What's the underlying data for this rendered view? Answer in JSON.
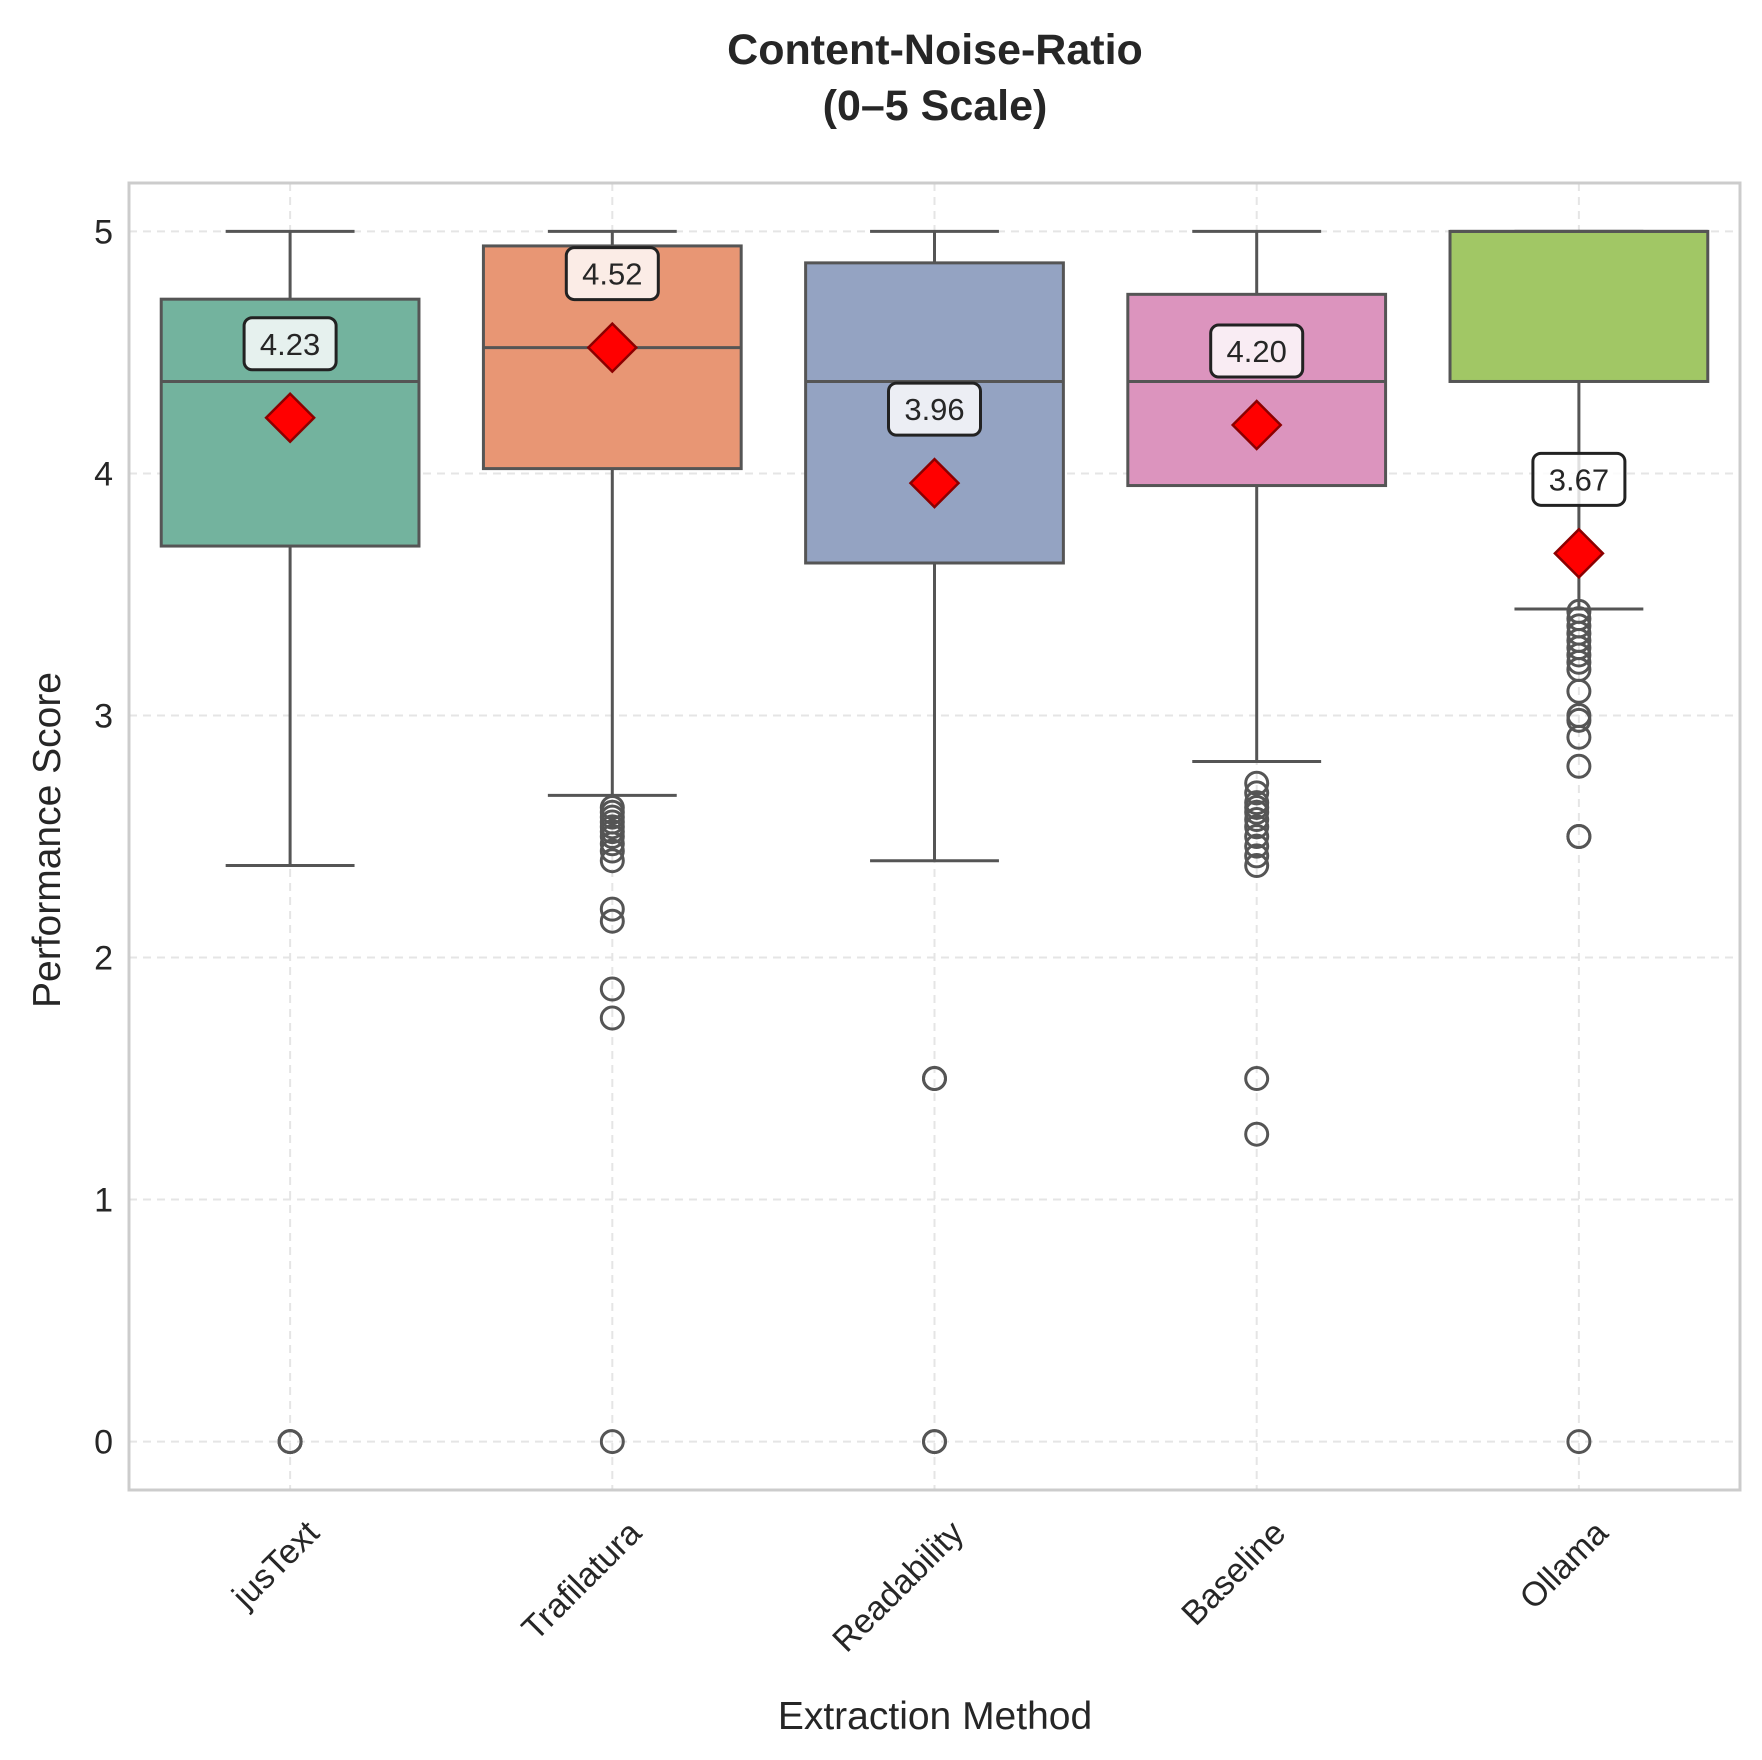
{
  "chart_data": {
    "type": "box",
    "title_lines": [
      "Content-Noise-Ratio",
      "(0–5 Scale)"
    ],
    "xlabel": "Extraction Method",
    "ylabel": "Performance Score",
    "ylim": [
      -0.2,
      5.2
    ],
    "yticks": [
      0,
      1,
      2,
      3,
      4,
      5
    ],
    "grid": true,
    "categories": [
      "jusText",
      "Trafilatura",
      "Readability",
      "Baseline",
      "Ollama"
    ],
    "series": [
      {
        "category": "jusText",
        "color": "#73b39e",
        "whisker_low": 2.38,
        "q1": 3.7,
        "median": 4.38,
        "q3": 4.72,
        "whisker_high": 5.0,
        "mean": 4.23,
        "mean_label": "4.23",
        "outliers": [
          0,
          0,
          0
        ]
      },
      {
        "category": "Trafilatura",
        "color": "#e89674",
        "whisker_low": 2.67,
        "q1": 4.02,
        "median": 4.52,
        "q3": 4.94,
        "whisker_high": 5.0,
        "mean": 4.52,
        "mean_label": "4.52",
        "outliers": [
          2.62,
          2.6,
          2.58,
          2.56,
          2.54,
          2.52,
          2.5,
          2.47,
          2.44,
          2.4,
          2.2,
          2.15,
          1.87,
          1.75,
          0
        ]
      },
      {
        "category": "Readability",
        "color": "#94a3c2",
        "whisker_low": 2.4,
        "q1": 3.63,
        "median": 4.38,
        "q3": 4.87,
        "whisker_high": 5.0,
        "mean": 3.96,
        "mean_label": "3.96",
        "outliers": [
          1.5,
          1.5,
          0,
          0
        ]
      },
      {
        "category": "Baseline",
        "color": "#dc94be",
        "whisker_low": 2.81,
        "q1": 3.95,
        "median": 4.38,
        "q3": 4.74,
        "whisker_high": 5.0,
        "mean": 4.2,
        "mean_label": "4.20",
        "outliers": [
          2.72,
          2.68,
          2.64,
          2.62,
          2.6,
          2.57,
          2.54,
          2.5,
          2.46,
          2.42,
          2.38,
          1.5,
          1.27
        ]
      },
      {
        "category": "Ollama",
        "color": "#a1c765",
        "whisker_low": 3.44,
        "q1": 4.38,
        "median": 5.0,
        "q3": 5.0,
        "whisker_high": 5.0,
        "mean": 3.67,
        "mean_label": "3.67",
        "outliers": [
          3.43,
          3.4,
          3.37,
          3.34,
          3.31,
          3.28,
          3.25,
          3.22,
          3.19,
          3.1,
          3.0,
          2.98,
          2.91,
          2.79,
          2.5,
          2.5,
          0
        ]
      }
    ],
    "mean_marker_color": "#ff0000"
  }
}
